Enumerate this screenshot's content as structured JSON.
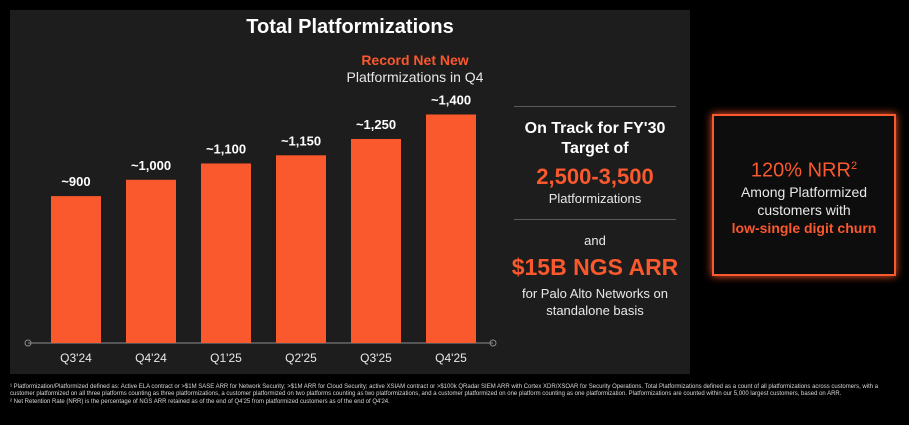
{
  "panel": {
    "title": "Total Platformizations",
    "record_highlight": "Record Net New",
    "record_sub": "Platformizations in Q4"
  },
  "chart_data": {
    "type": "bar",
    "title": "Total Platformizations",
    "categories": [
      "Q3'24",
      "Q4'24",
      "Q1'25",
      "Q2'25",
      "Q3'25",
      "Q4'25"
    ],
    "values": [
      900,
      1000,
      1100,
      1150,
      1250,
      1400
    ],
    "data_labels": [
      "~900",
      "~1,000",
      "~1,100",
      "~1,150",
      "~1,250",
      "~1,400"
    ],
    "ylim": [
      0,
      1550
    ],
    "grid": false,
    "bar_color": "#fa582d"
  },
  "target": {
    "heading": "On Track for FY'30 Target of",
    "value": "2,500-3,500",
    "unit": "Platformizations",
    "and": "and",
    "arr_value": "$15B NGS ARR",
    "arr_note": "for Palo Alto Networks on standalone basis"
  },
  "nrr": {
    "title": "120% NRR",
    "sup": "2",
    "text": "Among Platformized customers with",
    "highlight": "low-single digit churn"
  },
  "footnotes": {
    "note1": "¹ Platformization/Platformized defined as: Active ELA contract or >$1M SASE ARR for Network Security; >$1M ARR for Cloud Security; active XSIAM contract or >$100k QRadar SIEM ARR with Cortex XDR/XSOAR for Security Operations. Total Platformizations defined as a count of all platformizations across customers, with a customer platformized on all three platforms counting as three platformizations, a customer platformized on two platforms counting as two platformizations, and a customer platformized on one platform counting as one platformization. Platformizations are counted within our 5,000 largest customers, based on ARR.",
    "note2": "² Net Retention Rate (NRR) is the percentage of NGS ARR retained as of the end of Q4'25 from platformized customers as of the end of Q4'24."
  },
  "colors": {
    "accent": "#fa582d",
    "panel_bg": "#1d1d1d",
    "page_bg": "#000000"
  }
}
